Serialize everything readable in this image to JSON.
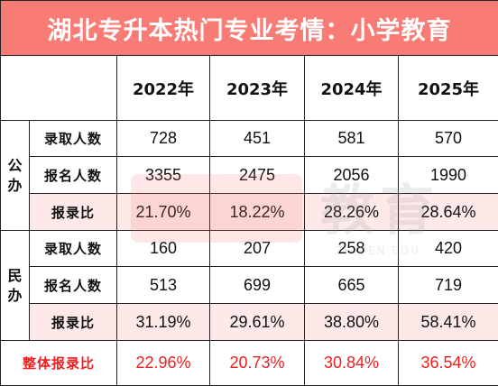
{
  "title": "湖北专升本热门专业考情：小学教育",
  "years": [
    "2022年",
    "2023年",
    "2024年",
    "2025年"
  ],
  "groups": [
    {
      "name": "公办",
      "rows": [
        {
          "label": "录取人数",
          "values": [
            "728",
            "451",
            "581",
            "570"
          ]
        },
        {
          "label": "报名人数",
          "values": [
            "3355",
            "2475",
            "2056",
            "1990"
          ]
        },
        {
          "label": "报录比",
          "values": [
            "21.70%",
            "18.22%",
            "28.26%",
            "28.64%"
          ]
        }
      ]
    },
    {
      "name": "民办",
      "rows": [
        {
          "label": "录取人数",
          "values": [
            "160",
            "207",
            "258",
            "420"
          ]
        },
        {
          "label": "报名人数",
          "values": [
            "513",
            "699",
            "665",
            "719"
          ]
        },
        {
          "label": "报录比",
          "values": [
            "31.19%",
            "29.61%",
            "38.80%",
            "58.41%"
          ]
        }
      ]
    }
  ],
  "overall": {
    "label": "整体报录比",
    "values": [
      "22.96%",
      "20.73%",
      "30.84%",
      "36.54%"
    ]
  },
  "watermark": {
    "text": "教育",
    "subtext": "ZHIBEN EDU"
  },
  "colors": {
    "title_bg": "#f87c75",
    "highlight_row": "#fde9e8",
    "overall_text": "#ee1f1f"
  }
}
